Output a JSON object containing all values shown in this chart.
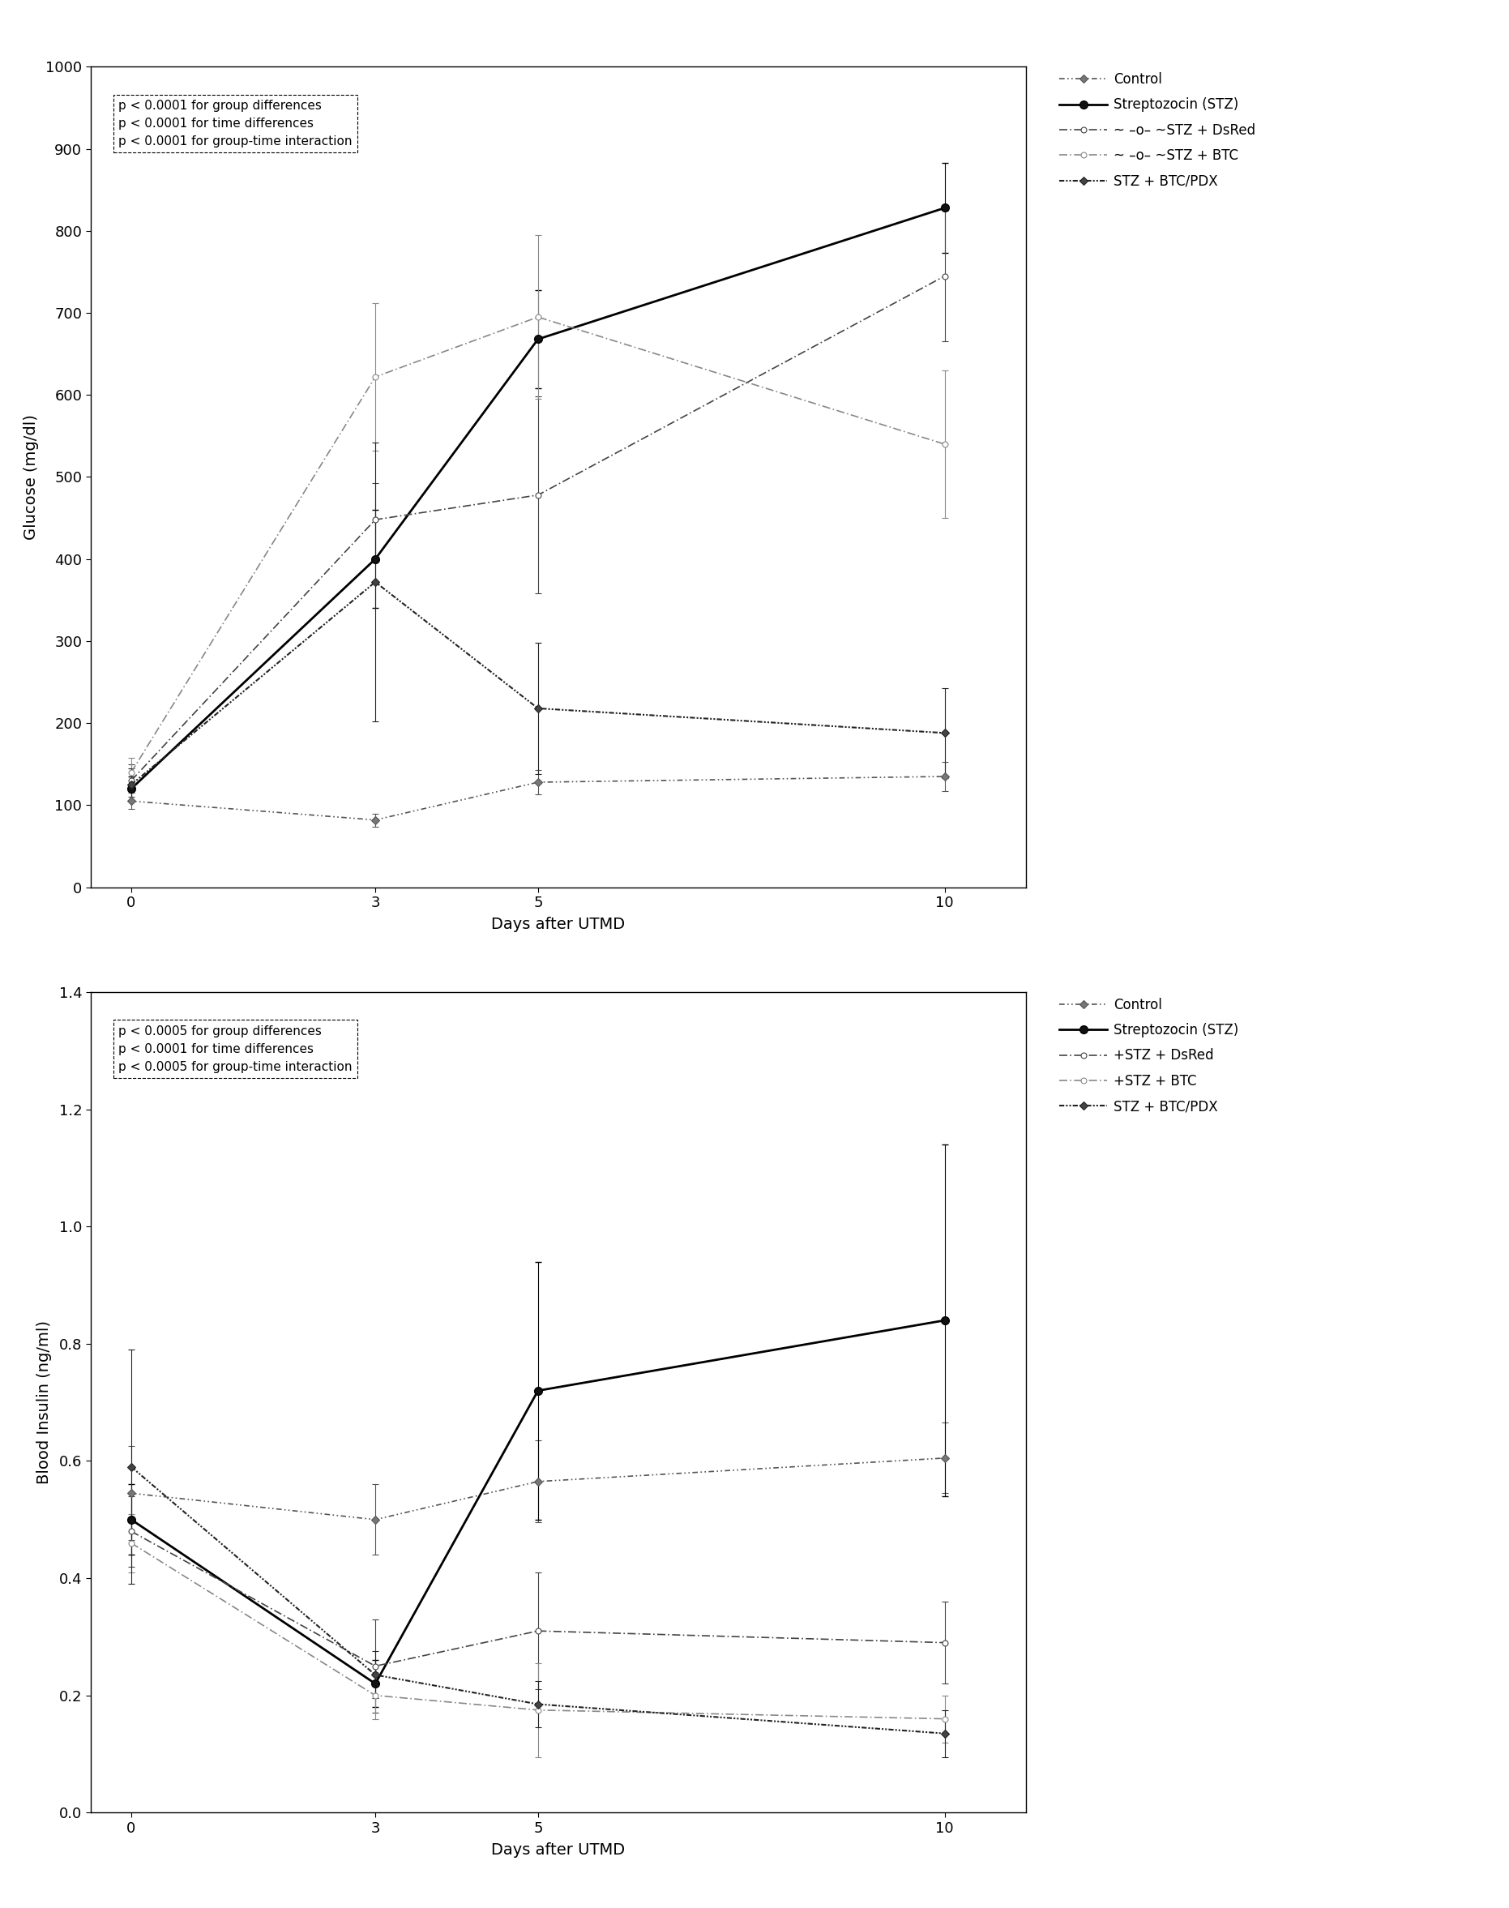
{
  "top_chart": {
    "xlabel": "Days after UTMD",
    "ylabel": "Glucose (mg/dl)",
    "ylim": [
      0,
      1000
    ],
    "yticks": [
      0,
      100,
      200,
      300,
      400,
      500,
      600,
      700,
      800,
      900,
      1000
    ],
    "xticks": [
      0,
      3,
      5,
      10
    ],
    "annotation": "p < 0.0001 for group differences\np < 0.0001 for time differences\np < 0.0001 for group-time interaction",
    "series": {
      "Control": {
        "x": [
          0,
          3,
          5,
          10
        ],
        "y": [
          105,
          82,
          128,
          135
        ],
        "yerr": [
          10,
          8,
          15,
          18
        ]
      },
      "STZ": {
        "x": [
          0,
          3,
          5,
          10
        ],
        "y": [
          120,
          400,
          668,
          828
        ],
        "yerr": [
          15,
          60,
          60,
          55
        ]
      },
      "STZ_DsRed": {
        "x": [
          0,
          3,
          5,
          10
        ],
        "y": [
          130,
          448,
          478,
          745
        ],
        "yerr": [
          20,
          45,
          120,
          80
        ]
      },
      "STZ_BTC": {
        "x": [
          0,
          3,
          5,
          10
        ],
        "y": [
          140,
          622,
          695,
          540
        ],
        "yerr": [
          18,
          90,
          100,
          90
        ]
      },
      "STZ_BTCPDX": {
        "x": [
          0,
          3,
          5,
          10
        ],
        "y": [
          125,
          372,
          218,
          188
        ],
        "yerr": [
          20,
          170,
          80,
          55
        ]
      }
    },
    "legend_labels": [
      "Control",
      "Streptozocin (STZ)",
      "~ –o– ~STZ + DsRed",
      "~ –o– ~STZ + BTC",
      "STZ + BTC/PDX"
    ]
  },
  "bottom_chart": {
    "xlabel": "Days after UTMD",
    "ylabel": "Blood Insulin (ng/ml)",
    "ylim": [
      0.0,
      1.4
    ],
    "yticks": [
      0.0,
      0.2,
      0.4,
      0.6,
      0.8,
      1.0,
      1.2,
      1.4
    ],
    "xticks": [
      0,
      3,
      5,
      10
    ],
    "annotation": "p < 0.0005 for group differences\np < 0.0001 for time differences\np < 0.0005 for group-time interaction",
    "series": {
      "Control": {
        "x": [
          0,
          3,
          5,
          10
        ],
        "y": [
          0.545,
          0.5,
          0.565,
          0.605
        ],
        "yerr": [
          0.08,
          0.06,
          0.07,
          0.06
        ]
      },
      "STZ": {
        "x": [
          0,
          3,
          5,
          10
        ],
        "y": [
          0.5,
          0.22,
          0.72,
          0.84
        ],
        "yerr": [
          0.06,
          0.04,
          0.22,
          0.3
        ]
      },
      "STZ_DsRed": {
        "x": [
          0,
          3,
          5,
          10
        ],
        "y": [
          0.48,
          0.25,
          0.31,
          0.29
        ],
        "yerr": [
          0.06,
          0.08,
          0.1,
          0.07
        ]
      },
      "STZ_BTC": {
        "x": [
          0,
          3,
          5,
          10
        ],
        "y": [
          0.46,
          0.2,
          0.175,
          0.16
        ],
        "yerr": [
          0.05,
          0.04,
          0.08,
          0.04
        ]
      },
      "STZ_BTCPDX": {
        "x": [
          0,
          3,
          5,
          10
        ],
        "y": [
          0.59,
          0.235,
          0.185,
          0.135
        ],
        "yerr": [
          0.2,
          0.04,
          0.04,
          0.04
        ]
      }
    },
    "legend_labels": [
      "Control",
      "Streptozocin (STZ)",
      "+STZ + DsRed",
      "+STZ + BTC",
      "STZ + BTC/PDX"
    ]
  },
  "fig_facecolor": "#ffffff",
  "ax_facecolor": "#ffffff"
}
